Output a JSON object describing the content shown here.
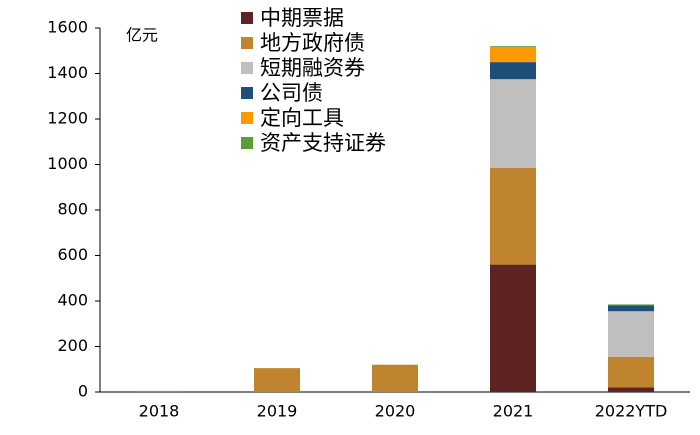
{
  "chart_data": {
    "type": "stacked_bar",
    "y_label": "亿元",
    "categories": [
      "2018",
      "2019",
      "2020",
      "2021",
      "2022YTD"
    ],
    "series": [
      {
        "name": "中期票据",
        "color": "#5e2323",
        "values": [
          0,
          0,
          0,
          560,
          20
        ]
      },
      {
        "name": "地方政府债",
        "color": "#c0842e",
        "values": [
          5,
          105,
          120,
          425,
          135
        ]
      },
      {
        "name": "短期融资券",
        "color": "#bfbfbf",
        "values": [
          0,
          0,
          0,
          390,
          200
        ]
      },
      {
        "name": "公司债",
        "color": "#1f4e79",
        "values": [
          0,
          0,
          0,
          75,
          25
        ]
      },
      {
        "name": "定向工具",
        "color": "#ff9900",
        "values": [
          0,
          0,
          0,
          65,
          0
        ]
      },
      {
        "name": "资产支持证券",
        "color": "#5a9e3a",
        "values": [
          0,
          0,
          0,
          5,
          5
        ]
      }
    ],
    "ylim": [
      0,
      1600
    ],
    "yticks": [
      0,
      200,
      400,
      600,
      800,
      1000,
      1200,
      1400,
      1600
    ]
  }
}
